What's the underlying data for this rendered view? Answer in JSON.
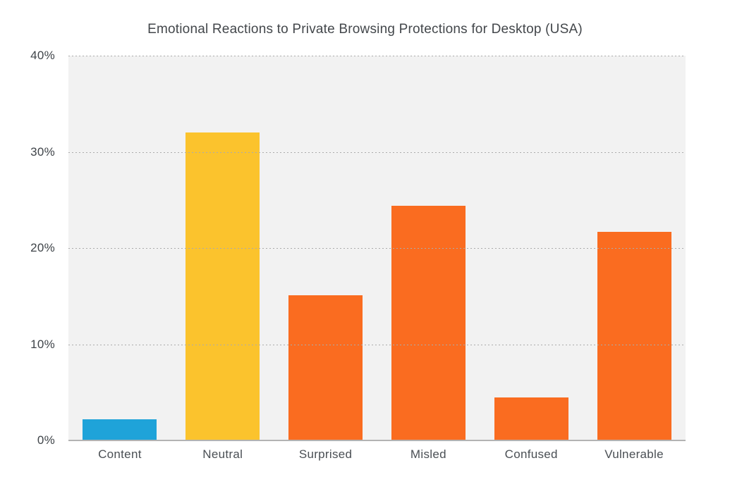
{
  "chart_data": {
    "type": "bar",
    "title": "Emotional Reactions to Private Browsing Protections for Desktop (USA)",
    "categories": [
      "Content",
      "Neutral",
      "Surprised",
      "Misled",
      "Confused",
      "Vulnerable"
    ],
    "values": [
      2.2,
      32.0,
      15.1,
      24.4,
      4.5,
      21.7
    ],
    "unit": "%",
    "bar_colors": [
      "#1FA3D9",
      "#FBC32D",
      "#FA6C20",
      "#FA6C20",
      "#FA6C20",
      "#FA6C20"
    ],
    "xlabel": "",
    "ylabel": "",
    "ylim": [
      0,
      40
    ],
    "yticks": [
      0,
      10,
      20,
      30,
      40
    ],
    "ytick_labels": [
      "0%",
      "10%",
      "20%",
      "30%",
      "40%"
    ],
    "grid": "horizontal dotted",
    "legend": "none",
    "plot_background": "#F2F2F2",
    "page_background": "#FFFFFF",
    "gridline_color": "#ABABAB",
    "axis_line_color": "#B3B3B3",
    "title_color": "#43474B",
    "tick_text_color": "#3F4449"
  }
}
